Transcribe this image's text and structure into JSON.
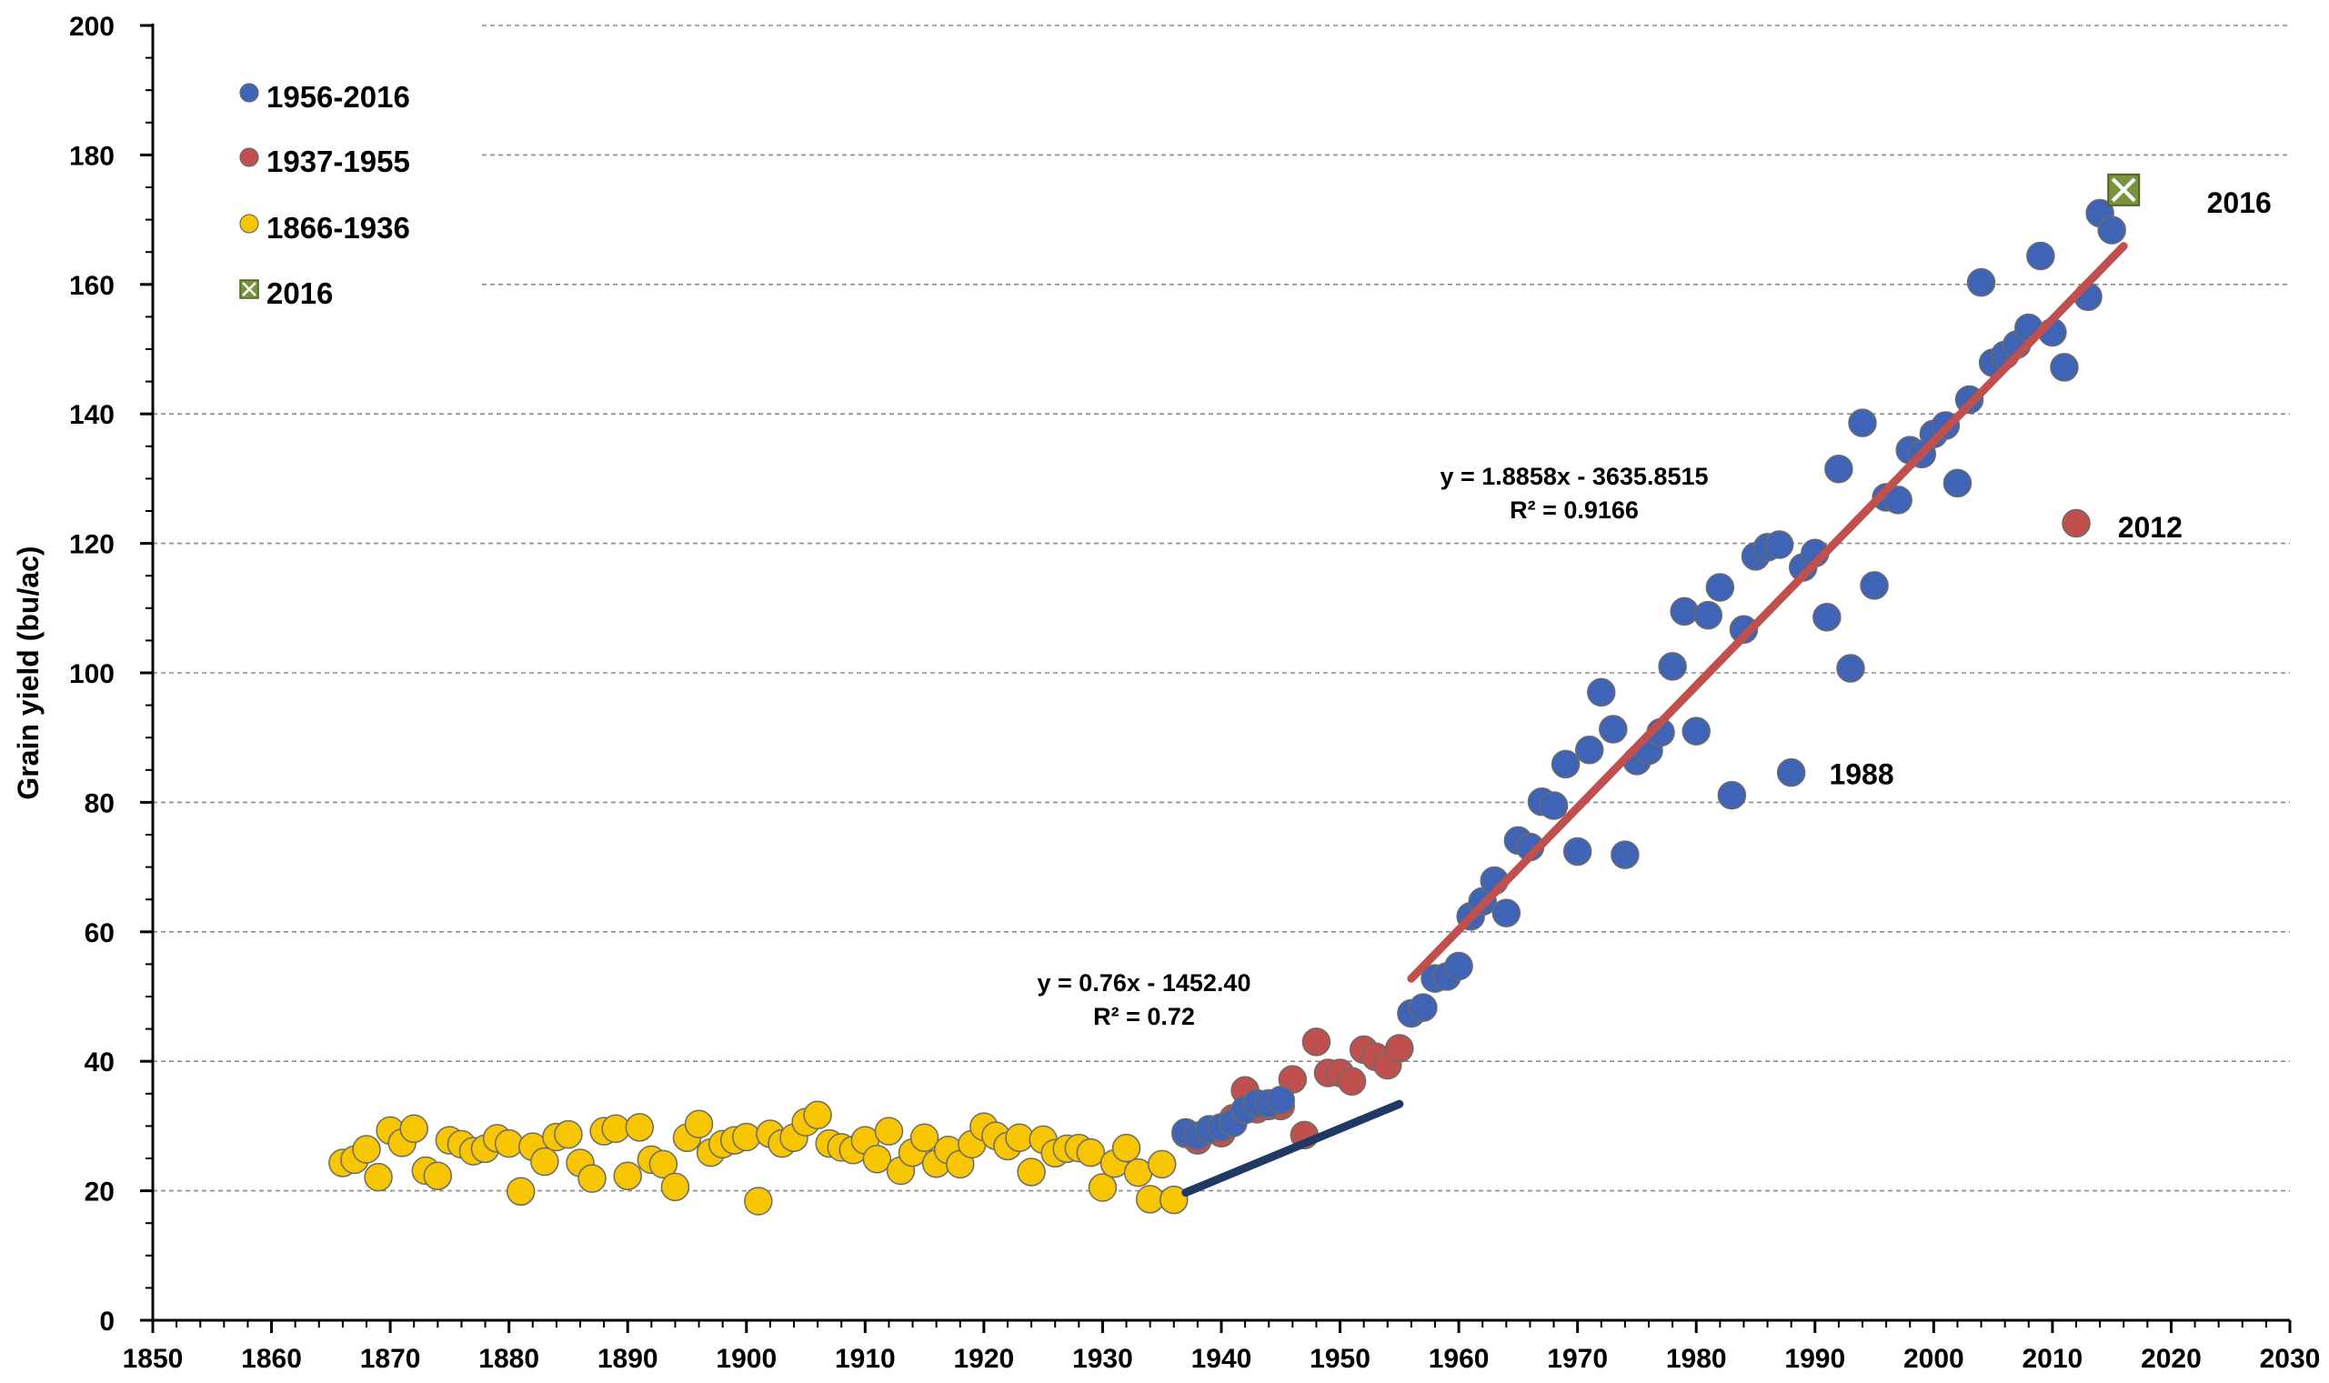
{
  "chart_data": {
    "type": "scatter",
    "title": "",
    "xlabel": "",
    "ylabel": "Grain yield (bu/ac)",
    "xlim": [
      1850,
      2030
    ],
    "ylim": [
      0,
      200
    ],
    "x_ticks": [
      "1850",
      "1860",
      "1870",
      "1880",
      "1890",
      "1900",
      "1910",
      "1920",
      "1930",
      "1940",
      "1950",
      "1960",
      "1970",
      "1980",
      "1990",
      "2000",
      "2010",
      "2020",
      "2030"
    ],
    "y_ticks": [
      "0",
      "20",
      "40",
      "60",
      "80",
      "100",
      "120",
      "140",
      "160",
      "180",
      "200"
    ],
    "grid": "horizontal dashed",
    "legend_position": "top-left",
    "colors": {
      "series_1956_2016": "#3f63b5",
      "series_1937_1955": "#c0504d",
      "series_1866_1936": "#f7c600",
      "series_2016": "#77933c",
      "trend_1937_1955": "#1f3864",
      "trend_1956_2016": "#c0504d"
    },
    "legend": [
      {
        "label": "1956-2016",
        "marker": "blue-circle"
      },
      {
        "label": "1937-1955",
        "marker": "red-circle"
      },
      {
        "label": "1866-1936",
        "marker": "yellow-circle"
      },
      {
        "label": "2016",
        "marker": "green-boxed-x"
      }
    ],
    "series": [
      {
        "name": "1866-1936",
        "points": [
          [
            1866,
            24.3
          ],
          [
            1867,
            24.8
          ],
          [
            1868,
            26.4
          ],
          [
            1869,
            22.1
          ],
          [
            1870,
            29.3
          ],
          [
            1871,
            27.4
          ],
          [
            1872,
            29.6
          ],
          [
            1873,
            23.1
          ],
          [
            1874,
            22.3
          ],
          [
            1875,
            27.8
          ],
          [
            1876,
            27.2
          ],
          [
            1877,
            26.1
          ],
          [
            1878,
            26.5
          ],
          [
            1879,
            28.1
          ],
          [
            1880,
            27.3
          ],
          [
            1881,
            19.9
          ],
          [
            1882,
            26.8
          ],
          [
            1883,
            24.5
          ],
          [
            1884,
            28.3
          ],
          [
            1885,
            28.7
          ],
          [
            1886,
            24.3
          ],
          [
            1887,
            21.9
          ],
          [
            1888,
            29.2
          ],
          [
            1889,
            29.6
          ],
          [
            1890,
            22.3
          ],
          [
            1891,
            29.8
          ],
          [
            1892,
            24.8
          ],
          [
            1893,
            24.1
          ],
          [
            1894,
            20.6
          ],
          [
            1895,
            28.2
          ],
          [
            1896,
            30.3
          ],
          [
            1897,
            25.9
          ],
          [
            1898,
            27.2
          ],
          [
            1899,
            27.8
          ],
          [
            1900,
            28.3
          ],
          [
            1901,
            18.4
          ],
          [
            1902,
            28.8
          ],
          [
            1903,
            27.3
          ],
          [
            1904,
            28.2
          ],
          [
            1905,
            30.6
          ],
          [
            1906,
            31.7
          ],
          [
            1907,
            27.3
          ],
          [
            1908,
            26.7
          ],
          [
            1909,
            26.3
          ],
          [
            1910,
            27.8
          ],
          [
            1911,
            24.9
          ],
          [
            1912,
            29.2
          ],
          [
            1913,
            23.1
          ],
          [
            1914,
            25.9
          ],
          [
            1915,
            28.2
          ],
          [
            1916,
            24.2
          ],
          [
            1917,
            26.3
          ],
          [
            1918,
            24.1
          ],
          [
            1919,
            27.2
          ],
          [
            1920,
            29.9
          ],
          [
            1921,
            28.5
          ],
          [
            1922,
            26.9
          ],
          [
            1923,
            28.2
          ],
          [
            1924,
            22.9
          ],
          [
            1925,
            27.9
          ],
          [
            1926,
            25.8
          ],
          [
            1927,
            26.5
          ],
          [
            1928,
            26.6
          ],
          [
            1929,
            25.9
          ],
          [
            1930,
            20.5
          ],
          [
            1931,
            24.2
          ],
          [
            1932,
            26.6
          ],
          [
            1933,
            22.8
          ],
          [
            1934,
            18.7
          ],
          [
            1935,
            24.1
          ],
          [
            1936,
            18.6
          ]
        ]
      },
      {
        "name": "1937-1955",
        "points": [
          [
            1937,
            28.8
          ],
          [
            1938,
            27.8
          ],
          [
            1939,
            29.4
          ],
          [
            1940,
            28.9
          ],
          [
            1941,
            31.2
          ],
          [
            1942,
            35.5
          ],
          [
            1943,
            32.6
          ],
          [
            1944,
            33.1
          ],
          [
            1945,
            33.1
          ],
          [
            1946,
            37.2
          ],
          [
            1947,
            28.6
          ],
          [
            1948,
            43.0
          ],
          [
            1949,
            38.2
          ],
          [
            1950,
            38.2
          ],
          [
            1951,
            36.9
          ],
          [
            1952,
            41.8
          ],
          [
            1953,
            40.7
          ],
          [
            1954,
            39.4
          ],
          [
            1955,
            42.0
          ],
          [
            2012,
            123.1
          ]
        ]
      },
      {
        "name": "1956-2016",
        "points": [
          [
            1937,
            29.0
          ],
          [
            1938,
            28.5
          ],
          [
            1939,
            29.5
          ],
          [
            1940,
            29.8
          ],
          [
            1941,
            30.5
          ],
          [
            1942,
            32.5
          ],
          [
            1943,
            33.5
          ],
          [
            1944,
            33.5
          ],
          [
            1945,
            34.0
          ],
          [
            1956,
            47.4
          ],
          [
            1957,
            48.3
          ],
          [
            1958,
            52.8
          ],
          [
            1959,
            53.1
          ],
          [
            1960,
            54.7
          ],
          [
            1961,
            62.4
          ],
          [
            1962,
            64.7
          ],
          [
            1963,
            67.9
          ],
          [
            1964,
            62.9
          ],
          [
            1965,
            74.1
          ],
          [
            1966,
            73.1
          ],
          [
            1967,
            80.1
          ],
          [
            1968,
            79.5
          ],
          [
            1969,
            85.9
          ],
          [
            1970,
            72.4
          ],
          [
            1971,
            88.1
          ],
          [
            1972,
            97.0
          ],
          [
            1973,
            91.3
          ],
          [
            1974,
            71.9
          ],
          [
            1975,
            86.4
          ],
          [
            1976,
            88.0
          ],
          [
            1977,
            90.8
          ],
          [
            1978,
            101.0
          ],
          [
            1979,
            109.5
          ],
          [
            1980,
            91.0
          ],
          [
            1981,
            108.9
          ],
          [
            1982,
            113.2
          ],
          [
            1983,
            81.1
          ],
          [
            1984,
            106.7
          ],
          [
            1985,
            118.0
          ],
          [
            1986,
            119.4
          ],
          [
            1987,
            119.8
          ],
          [
            1988,
            84.6
          ],
          [
            1989,
            116.3
          ],
          [
            1990,
            118.5
          ],
          [
            1991,
            108.6
          ],
          [
            1992,
            131.5
          ],
          [
            1993,
            100.7
          ],
          [
            1994,
            138.6
          ],
          [
            1995,
            113.5
          ],
          [
            1996,
            127.1
          ],
          [
            1997,
            126.7
          ],
          [
            1998,
            134.4
          ],
          [
            1999,
            133.8
          ],
          [
            2000,
            136.9
          ],
          [
            2001,
            138.2
          ],
          [
            2002,
            129.3
          ],
          [
            2003,
            142.2
          ],
          [
            2004,
            160.3
          ],
          [
            2005,
            147.9
          ],
          [
            2006,
            149.1
          ],
          [
            2007,
            150.7
          ],
          [
            2008,
            153.3
          ],
          [
            2009,
            164.4
          ],
          [
            2010,
            152.6
          ],
          [
            2011,
            147.2
          ],
          [
            2013,
            158.1
          ],
          [
            2014,
            171.0
          ],
          [
            2015,
            168.4
          ]
        ]
      },
      {
        "name": "2016",
        "points": [
          [
            2016,
            174.6
          ]
        ]
      }
    ],
    "trendlines": [
      {
        "name": "1937-1955",
        "x": [
          1937,
          1955
        ],
        "equation": "y = 0.76x - 1452.40",
        "r2": "R² = 0.72",
        "slope": 0.76,
        "intercept": -1452.4
      },
      {
        "name": "1956-2016",
        "x": [
          1956,
          2016
        ],
        "equation": "y = 1.8858x - 3635.8515",
        "r2": "R² = 0.9166",
        "slope": 1.8858,
        "intercept": -3635.8515
      }
    ],
    "annotations": [
      {
        "text": "2016",
        "x": 2023,
        "y": 172.5
      },
      {
        "text": "2012",
        "x": 2015.5,
        "y": 122.3
      },
      {
        "text": "1988",
        "x": 1991.2,
        "y": 84.2
      }
    ]
  }
}
